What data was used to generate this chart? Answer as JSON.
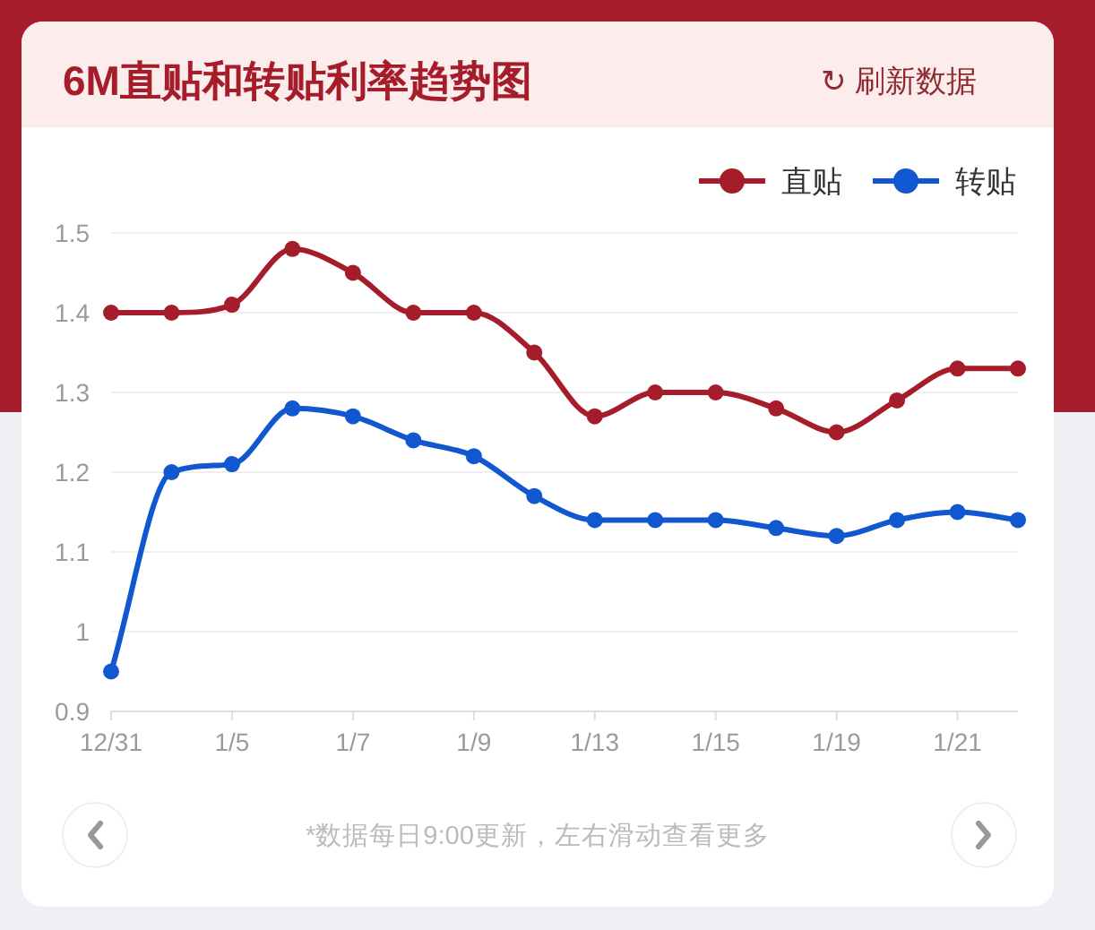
{
  "chart_data": {
    "type": "line",
    "title": "6M直贴和转贴利率趋势图",
    "categories": [
      "12/31",
      null,
      "1/5",
      null,
      "1/7",
      null,
      "1/9",
      null,
      "1/13",
      null,
      "1/15",
      null,
      "1/19",
      null,
      "1/21",
      null
    ],
    "series": [
      {
        "name": "直贴",
        "color": "#a51d2b",
        "values": [
          1.4,
          1.4,
          1.41,
          1.48,
          1.45,
          1.4,
          1.4,
          1.35,
          1.27,
          1.3,
          1.3,
          1.28,
          1.25,
          1.29,
          1.33,
          1.33
        ]
      },
      {
        "name": "转贴",
        "color": "#1157cf",
        "values": [
          0.95,
          1.2,
          1.21,
          1.28,
          1.27,
          1.24,
          1.22,
          1.17,
          1.14,
          1.14,
          1.14,
          1.13,
          1.12,
          1.14,
          1.15,
          1.14
        ]
      }
    ],
    "ylim": [
      0.9,
      1.5
    ],
    "yticks": [
      0.9,
      1,
      1.1,
      1.2,
      1.3,
      1.4,
      1.5
    ],
    "grid": "y",
    "legend": "top right",
    "marker": "circle",
    "line_style": "solid",
    "annotations": [
      "↻ 刷新数据",
      "*数据每日9:00更新，左右滑动查看更多"
    ]
  }
}
